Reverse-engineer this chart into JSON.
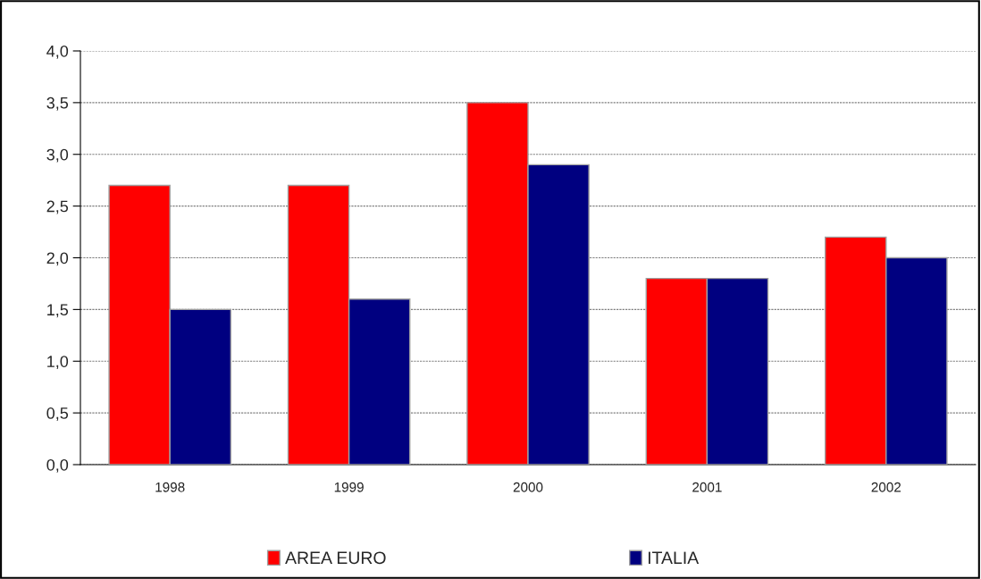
{
  "chart_data": {
    "type": "bar",
    "categories": [
      "1998",
      "1999",
      "2000",
      "2001",
      "2002"
    ],
    "series": [
      {
        "name": "AREA EURO",
        "color": "#ff0000",
        "values": [
          2.7,
          2.7,
          3.5,
          1.8,
          2.2
        ]
      },
      {
        "name": "ITALIA",
        "color": "#000080",
        "values": [
          1.5,
          1.6,
          2.9,
          1.8,
          2.0
        ]
      }
    ],
    "ylim": [
      0,
      4
    ],
    "yticks": [
      {
        "value": 0,
        "label": "0,0"
      },
      {
        "value": 0.5,
        "label": "0,5"
      },
      {
        "value": 1,
        "label": "1,0"
      },
      {
        "value": 1.5,
        "label": "1,5"
      },
      {
        "value": 2,
        "label": "2,0"
      },
      {
        "value": 2.5,
        "label": "2,5"
      },
      {
        "value": 3,
        "label": "3,0"
      },
      {
        "value": 3.5,
        "label": "3,5"
      },
      {
        "value": 4,
        "label": "4,0"
      }
    ],
    "grid": "y",
    "legend": "bottom"
  }
}
